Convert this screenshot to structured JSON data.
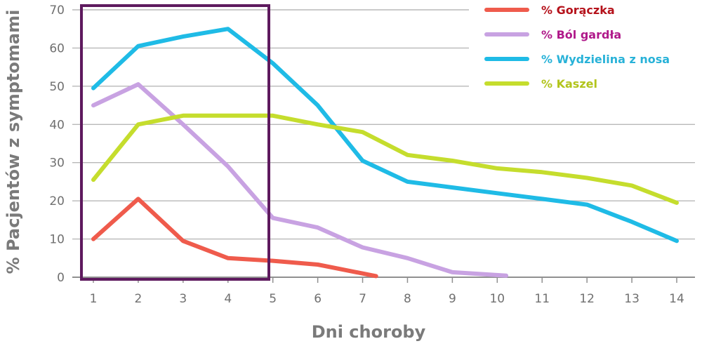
{
  "chart_data": {
    "type": "line",
    "xlabel": "Dni choroby",
    "ylabel": "% Pacjentów z symptomami",
    "xlim": [
      1,
      14
    ],
    "ylim": [
      0,
      70
    ],
    "x_ticks": [
      "1",
      "2",
      "3",
      "4",
      "5",
      "6",
      "7",
      "8",
      "9",
      "10",
      "11",
      "12",
      "13",
      "14"
    ],
    "y_ticks": [
      "0",
      "10",
      "20",
      "30",
      "40",
      "50",
      "60",
      "70"
    ],
    "grid": "horizontal",
    "legend_position": "top-right",
    "highlight_range": [
      1,
      4.75
    ],
    "highlight_color": "#5e1a5e",
    "series": [
      {
        "name": "% Gorączka",
        "color": "#ef5b4c",
        "label_color": "#b5121b",
        "points": [
          [
            1,
            10
          ],
          [
            2,
            20.5
          ],
          [
            3,
            9.5
          ],
          [
            4,
            5
          ],
          [
            5,
            4.3
          ],
          [
            6,
            3.3
          ],
          [
            7.3,
            0.3
          ]
        ]
      },
      {
        "name": "% Ból gardła",
        "color": "#c8a2e2",
        "label_color": "#b0198a",
        "points": [
          [
            1,
            45
          ],
          [
            2,
            50.5
          ],
          [
            3,
            40
          ],
          [
            4,
            29
          ],
          [
            5,
            15.5
          ],
          [
            6,
            13
          ],
          [
            7,
            7.8
          ],
          [
            8,
            5
          ],
          [
            9,
            1.3
          ],
          [
            10.2,
            0.4
          ]
        ]
      },
      {
        "name": "% Wydzielina z nosa",
        "color": "#1fbbe6",
        "label_color": "#28b2d8",
        "points": [
          [
            1,
            49.5
          ],
          [
            2,
            60.5
          ],
          [
            3,
            63
          ],
          [
            4,
            65
          ],
          [
            5,
            56
          ],
          [
            6,
            45
          ],
          [
            7,
            30.5
          ],
          [
            8,
            25
          ],
          [
            9,
            23.5
          ],
          [
            10,
            22
          ],
          [
            11,
            20.5
          ],
          [
            12,
            19
          ],
          [
            13,
            14.5
          ],
          [
            14,
            9.5
          ]
        ]
      },
      {
        "name": "% Kaszel",
        "color": "#c5dd2d",
        "label_color": "#b2c41b",
        "points": [
          [
            1,
            25.5
          ],
          [
            2,
            40
          ],
          [
            3,
            42.3
          ],
          [
            4,
            42.3
          ],
          [
            5,
            42.3
          ],
          [
            6,
            40
          ],
          [
            7,
            38
          ],
          [
            8,
            32
          ],
          [
            9,
            30.5
          ],
          [
            10,
            28.5
          ],
          [
            11,
            27.5
          ],
          [
            12,
            26
          ],
          [
            13,
            24
          ],
          [
            14,
            19.5
          ]
        ]
      }
    ]
  }
}
